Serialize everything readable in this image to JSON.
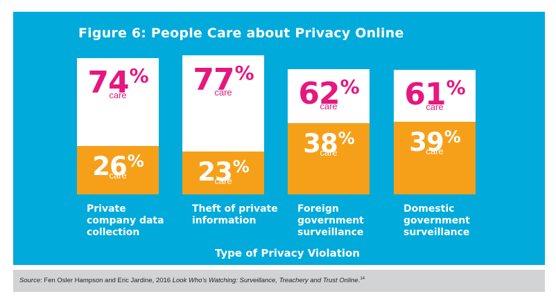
{
  "colors": {
    "panel_background": "#00aadb",
    "care_color": "#e6177e",
    "no_care_color": "#f6a01a",
    "source_background": "#d1d3d4"
  },
  "chart_data": {
    "type": "bar",
    "stacked": true,
    "title": "Figure 6: People Care about Privacy Online",
    "xlabel": "Type of Privacy Violation",
    "categories": [
      "Private\ncompany data\ncollection",
      "Theft of private\ninformation",
      "Foreign\ngovernment\nsurveillance",
      "Domestic\ngovernment\nsurveillance"
    ],
    "series": [
      {
        "values": [
          74,
          77,
          62,
          61
        ],
        "label": "care",
        "color": "#e6177e"
      },
      {
        "values": [
          26,
          23,
          38,
          39
        ],
        "label": "care",
        "color": "#f6a01a"
      }
    ],
    "value_suffix": "%",
    "ylim": [
      0,
      100
    ],
    "grid": false
  },
  "source": {
    "prefix": "Source",
    "authors": ": Fen Osler Hampson and Eric Jardine, 2016 ",
    "work": "Look Who’s Watching: Surveillance, Treachery and Trust Online",
    "suffix": ".",
    "footnote": "14"
  }
}
